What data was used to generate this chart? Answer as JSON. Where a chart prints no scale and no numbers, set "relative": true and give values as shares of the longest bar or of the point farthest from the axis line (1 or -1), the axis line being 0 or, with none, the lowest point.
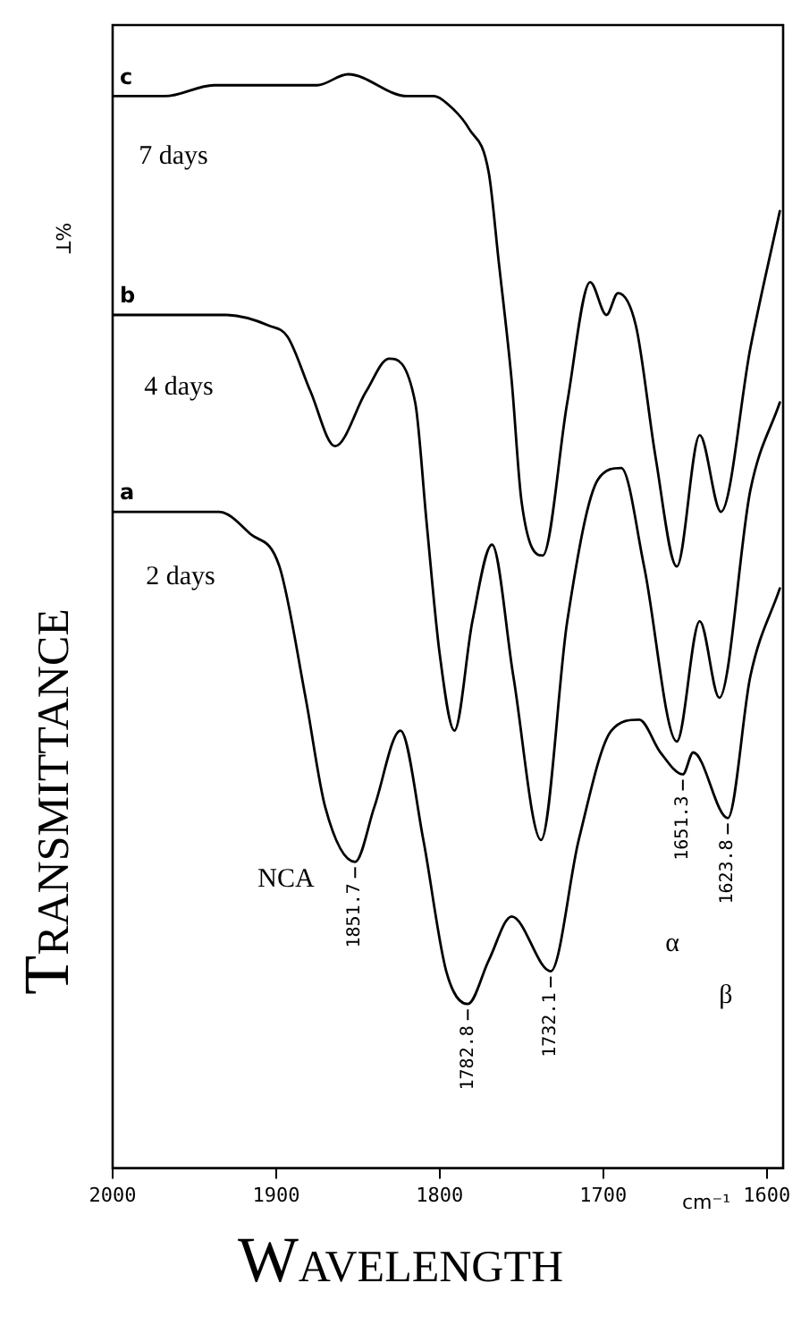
{
  "chart_data": {
    "type": "line",
    "relative": true,
    "xlabel": "Wavelength",
    "ylabel": "Transmittance",
    "xlim": [
      2000,
      1590
    ],
    "xticks": [
      2000,
      1900,
      1800,
      1700,
      1600
    ],
    "grid": false,
    "legend": false,
    "marker": "none",
    "line_style": "solid",
    "series": [
      {
        "name": "c",
        "color": "#000000",
        "x": [
          2000,
          1968,
          1938,
          1912,
          1875,
          1856,
          1820,
          1804,
          1793,
          1782,
          1770,
          1764,
          1756,
          1750,
          1737,
          1722,
          1708,
          1698,
          1691,
          1680,
          1668,
          1655,
          1641,
          1628,
          1610,
          1592
        ],
        "values": [
          0.98,
          0.98,
          0.99,
          0.99,
          0.99,
          1.0,
          0.98,
          0.98,
          0.97,
          0.95,
          0.91,
          0.83,
          0.72,
          0.61,
          0.56,
          0.7,
          0.81,
          0.78,
          0.8,
          0.77,
          0.65,
          0.55,
          0.67,
          0.6,
          0.75,
          0.875
        ]
      },
      {
        "name": "b",
        "color": "#000000",
        "x": [
          2000,
          1931,
          1904,
          1893,
          1879,
          1864,
          1845,
          1831,
          1815,
          1808,
          1800,
          1791,
          1780,
          1768,
          1755,
          1738,
          1722,
          1703,
          1689,
          1675,
          1655,
          1641,
          1629,
          1610,
          1592
        ],
        "values": [
          0.78,
          0.78,
          0.77,
          0.76,
          0.71,
          0.66,
          0.71,
          0.74,
          0.7,
          0.59,
          0.47,
          0.4,
          0.5,
          0.57,
          0.45,
          0.3,
          0.5,
          0.63,
          0.64,
          0.55,
          0.39,
          0.5,
          0.43,
          0.62,
          0.7
        ]
      },
      {
        "name": "a",
        "color": "#000000",
        "x": [
          2000,
          1950,
          1935,
          1916,
          1898,
          1882,
          1870,
          1851.7,
          1840,
          1824,
          1810,
          1796,
          1782.8,
          1770,
          1756,
          1732.1,
          1715,
          1695,
          1678,
          1665,
          1651.3,
          1645,
          1623.8,
          1610,
          1592
        ],
        "values": [
          0.6,
          0.6,
          0.6,
          0.58,
          0.55,
          0.43,
          0.33,
          0.28,
          0.33,
          0.4,
          0.3,
          0.18,
          0.15,
          0.19,
          0.23,
          0.18,
          0.3,
          0.4,
          0.41,
          0.38,
          0.36,
          0.38,
          0.32,
          0.45,
          0.53
        ]
      }
    ],
    "annotations": [
      "7 days",
      "4 days",
      "2 days",
      {
        "text": "1851.7",
        "x": 1851.7,
        "y": 0.28
      },
      {
        "text": "1782.8",
        "x": 1782.8,
        "y": 0.15
      },
      {
        "text": "1732.1",
        "x": 1732.1,
        "y": 0.18
      },
      {
        "text": "1651.3",
        "x": 1651.3,
        "y": 0.36
      },
      {
        "text": "1623.8",
        "x": 1623.8,
        "y": 0.32
      },
      "NCA",
      "α",
      "β",
      "%T",
      "cm⁻¹"
    ]
  }
}
